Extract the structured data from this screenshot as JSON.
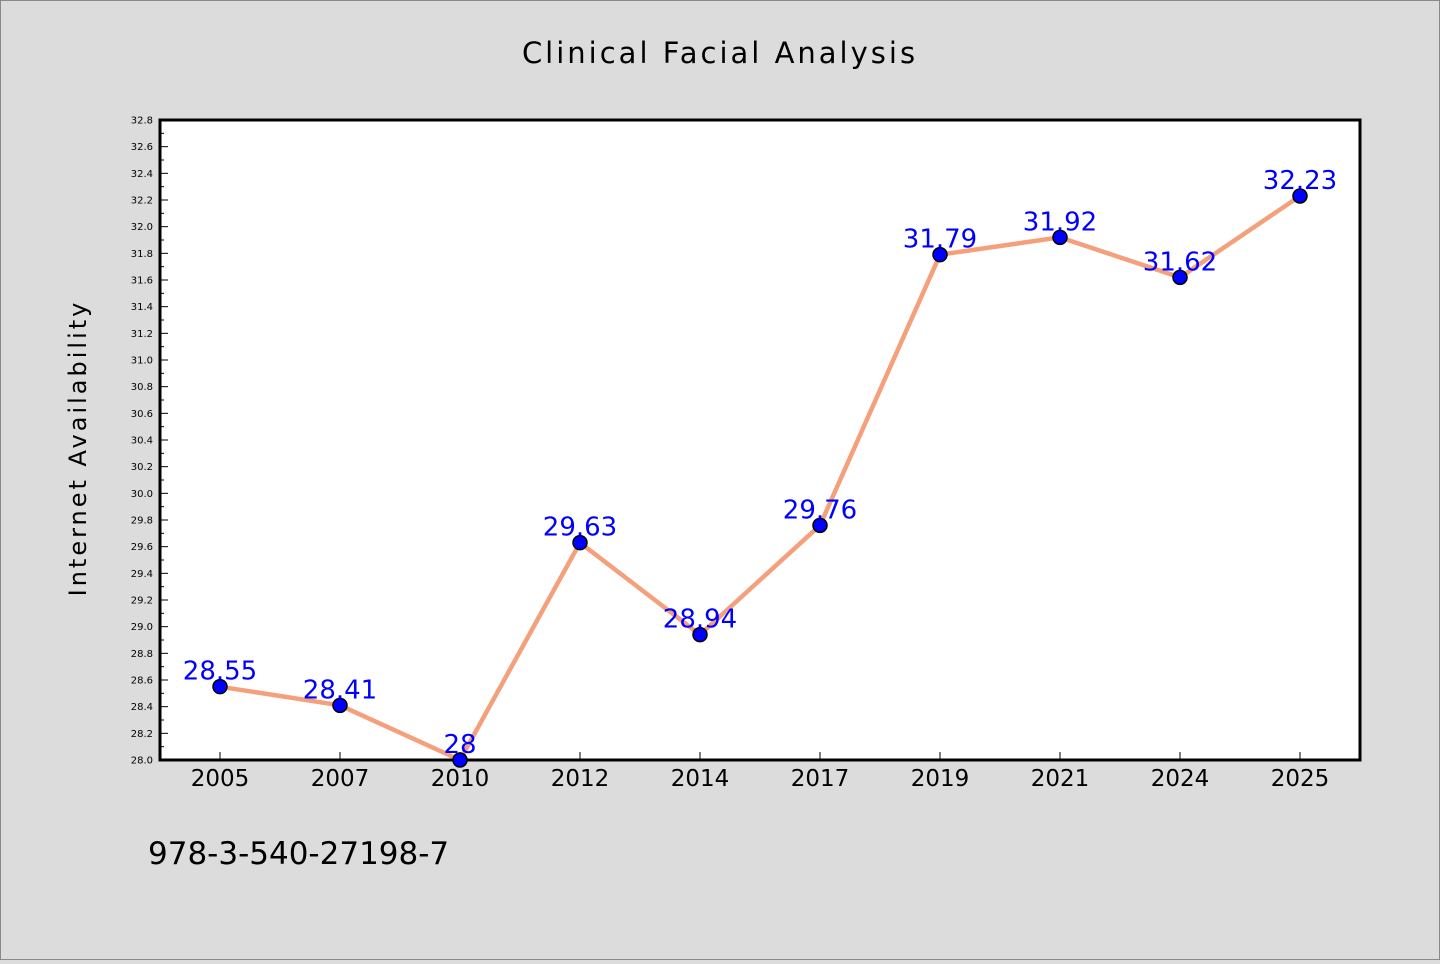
{
  "colors": {
    "background": "#dcdcdc",
    "plot_background": "#ffffff",
    "line": "#f4a07c",
    "marker": "#0000ff",
    "data_label": "#0000ff",
    "text": "#000000"
  },
  "footer": {
    "isbn": "978-3-540-27198-7"
  },
  "chart_data": {
    "type": "line",
    "title": "Clinical Facial Analysis",
    "xlabel": "",
    "ylabel": "Internet Availability",
    "categories": [
      "2005",
      "2007",
      "2010",
      "2012",
      "2014",
      "2017",
      "2019",
      "2021",
      "2024",
      "2025"
    ],
    "series": [
      {
        "values": [
          28.55,
          28.41,
          28.0,
          29.63,
          28.94,
          29.76,
          31.79,
          31.92,
          31.62,
          32.23
        ],
        "labels": [
          "28.55",
          "28.41",
          "28",
          "29.63",
          "28.94",
          "29.76",
          "31.79",
          "31.92",
          "31.62",
          "32.23"
        ]
      }
    ],
    "ylim": [
      28.0,
      32.8
    ],
    "y_tick_step": 0.2,
    "grid": false,
    "legend": "none"
  }
}
